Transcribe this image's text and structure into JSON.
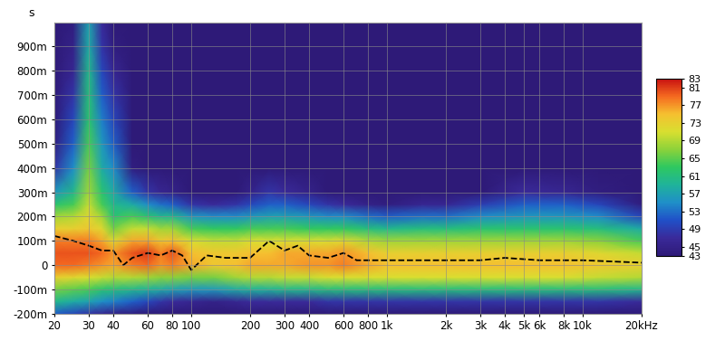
{
  "chart_data": {
    "type": "heatmap",
    "ylabel": "s",
    "log": "x",
    "grid": true,
    "xlim": [
      20,
      20000
    ],
    "xticks": [
      20,
      30,
      40,
      60,
      80,
      100,
      200,
      300,
      400,
      600,
      800,
      {
        "value": 1000,
        "label": "1k"
      },
      {
        "value": 2000,
        "label": "2k"
      },
      {
        "value": 3000,
        "label": "3k"
      },
      {
        "value": 4000,
        "label": "4k"
      },
      {
        "value": 5000,
        "label": "5k"
      },
      {
        "value": 6000,
        "label": "6k"
      },
      {
        "value": 8000,
        "label": "8k"
      },
      {
        "value": 10000,
        "label": "10k"
      },
      {
        "value": 20000,
        "label": "20kHz"
      }
    ],
    "ylim": [
      -0.2,
      1.0
    ],
    "yticks": [
      {
        "value": -0.2,
        "label": "-200m"
      },
      {
        "value": -0.1,
        "label": "-100m"
      },
      0,
      {
        "value": 0.1,
        "label": "100m"
      },
      {
        "value": 0.2,
        "label": "200m"
      },
      {
        "value": 0.3,
        "label": "300m"
      },
      {
        "value": 0.4,
        "label": "400m"
      },
      {
        "value": 0.5,
        "label": "500m"
      },
      {
        "value": 0.6,
        "label": "600m"
      },
      {
        "value": 0.7,
        "label": "700m"
      },
      {
        "value": 0.8,
        "label": "800m"
      },
      {
        "value": 0.9,
        "label": "900m"
      }
    ],
    "x": [
      20,
      25,
      30,
      35,
      40,
      50,
      60,
      70,
      80,
      100,
      130,
      170,
      200,
      250,
      300,
      400,
      500,
      600,
      800,
      1000,
      1500,
      2000,
      3000,
      5000,
      8000,
      12000,
      20000
    ],
    "y": [
      -0.2,
      -0.15,
      -0.1,
      -0.05,
      0,
      0.05,
      0.1,
      0.15,
      0.2,
      0.25,
      0.3,
      0.4,
      0.5,
      0.6,
      0.7,
      0.8,
      0.9,
      1.0
    ],
    "cells": [
      [
        52,
        50,
        48,
        46,
        45,
        44,
        43,
        42,
        42,
        40,
        38,
        38,
        38,
        38,
        38,
        38,
        38,
        38,
        38,
        38,
        38,
        38,
        38,
        38,
        38,
        38,
        38
      ],
      [
        60,
        58,
        57,
        55,
        54,
        52,
        50,
        48,
        47,
        46,
        45,
        46,
        47,
        47,
        47,
        47,
        48,
        48,
        48,
        48,
        48,
        48,
        48,
        48,
        48,
        48,
        47
      ],
      [
        66,
        65,
        64,
        62,
        61,
        60,
        59,
        58,
        57,
        56,
        56,
        58,
        59,
        59,
        60,
        60,
        61,
        61,
        61,
        61,
        61,
        61,
        61,
        61,
        61,
        61,
        60
      ],
      [
        73,
        72,
        71,
        70,
        69,
        69,
        68,
        67,
        67,
        66,
        66,
        68,
        69,
        69,
        70,
        70,
        71,
        71,
        71,
        71,
        71,
        71,
        71,
        71,
        71,
        70,
        69
      ],
      [
        79,
        79,
        78,
        77,
        76,
        78,
        79,
        77,
        78,
        76,
        74,
        75,
        76,
        76,
        76,
        77,
        77,
        78,
        76,
        75,
        75,
        75,
        75,
        75,
        75,
        74,
        73
      ],
      [
        80,
        80,
        80,
        79,
        77,
        80,
        81,
        78,
        80,
        75,
        74,
        74,
        75,
        75,
        76,
        76,
        76,
        77,
        75,
        73,
        73,
        73,
        73,
        73,
        73,
        72,
        70
      ],
      [
        78,
        78,
        78,
        76,
        72,
        76,
        76,
        74,
        75,
        71,
        70,
        70,
        71,
        71,
        71,
        71,
        71,
        72,
        69,
        68,
        68,
        68,
        68,
        68,
        68,
        67,
        64
      ],
      [
        73,
        73,
        74,
        72,
        66,
        70,
        70,
        68,
        68,
        64,
        63,
        63,
        64,
        64,
        64,
        63,
        63,
        63,
        61,
        60,
        61,
        61,
        62,
        62,
        62,
        61,
        58
      ],
      [
        68,
        69,
        72,
        68,
        62,
        64,
        62,
        60,
        60,
        56,
        55,
        55,
        56,
        57,
        57,
        56,
        55,
        55,
        53,
        52,
        53,
        53,
        55,
        56,
        56,
        55,
        50
      ],
      [
        62,
        64,
        70,
        64,
        60,
        58,
        55,
        53,
        52,
        48,
        47,
        48,
        50,
        52,
        52,
        50,
        48,
        47,
        45,
        44,
        46,
        46,
        49,
        52,
        52,
        50,
        44
      ],
      [
        56,
        60,
        68,
        62,
        58,
        52,
        48,
        46,
        45,
        42,
        42,
        43,
        45,
        48,
        47,
        45,
        43,
        42,
        40,
        40,
        41,
        41,
        43,
        47,
        46,
        44,
        40
      ],
      [
        48,
        55,
        66,
        58,
        55,
        44,
        40,
        38,
        38,
        36,
        36,
        36,
        38,
        40,
        38,
        36,
        36,
        36,
        36,
        36,
        36,
        36,
        36,
        38,
        38,
        36,
        36
      ],
      [
        44,
        52,
        64,
        56,
        52,
        40,
        38,
        36,
        36,
        36,
        36,
        36,
        36,
        36,
        36,
        36,
        36,
        36,
        36,
        36,
        36,
        36,
        36,
        36,
        36,
        36,
        36
      ],
      [
        42,
        50,
        62,
        54,
        50,
        38,
        36,
        36,
        36,
        36,
        36,
        36,
        36,
        36,
        36,
        36,
        36,
        36,
        36,
        36,
        36,
        36,
        36,
        36,
        36,
        36,
        36
      ],
      [
        40,
        48,
        61,
        52,
        48,
        37,
        36,
        36,
        36,
        36,
        36,
        36,
        36,
        36,
        36,
        36,
        36,
        36,
        36,
        36,
        36,
        36,
        36,
        36,
        36,
        36,
        36
      ],
      [
        38,
        46,
        60,
        50,
        46,
        36,
        36,
        36,
        36,
        36,
        36,
        36,
        36,
        36,
        36,
        36,
        36,
        36,
        36,
        36,
        36,
        36,
        36,
        36,
        36,
        36,
        36
      ],
      [
        36,
        45,
        58,
        48,
        44,
        36,
        36,
        36,
        36,
        36,
        36,
        36,
        36,
        36,
        36,
        36,
        36,
        36,
        36,
        36,
        36,
        36,
        36,
        36,
        36,
        36,
        36
      ],
      [
        36,
        44,
        57,
        47,
        42,
        36,
        36,
        36,
        36,
        36,
        36,
        36,
        36,
        36,
        36,
        36,
        36,
        36,
        36,
        36,
        36,
        36,
        36,
        36,
        36,
        36,
        36
      ]
    ],
    "colorbar": {
      "range": [
        43,
        83
      ],
      "ticks": [
        43,
        45,
        49,
        53,
        57,
        61,
        65,
        69,
        73,
        77,
        81,
        83
      ]
    },
    "series": [
      {
        "type": "line",
        "color": "#000000",
        "line_style": "dashed",
        "x": [
          20,
          25,
          30,
          35,
          40,
          45,
          50,
          60,
          70,
          80,
          90,
          100,
          120,
          150,
          200,
          250,
          300,
          350,
          400,
          500,
          600,
          700,
          800,
          1000,
          1500,
          2000,
          3000,
          4000,
          6000,
          10000,
          20000
        ],
        "values": [
          0.12,
          0.1,
          0.08,
          0.06,
          0.06,
          0.0,
          0.03,
          0.05,
          0.04,
          0.06,
          0.04,
          -0.02,
          0.04,
          0.03,
          0.03,
          0.1,
          0.06,
          0.08,
          0.04,
          0.03,
          0.05,
          0.02,
          0.02,
          0.02,
          0.02,
          0.02,
          0.02,
          0.03,
          0.02,
          0.02,
          0.01
        ]
      }
    ]
  }
}
